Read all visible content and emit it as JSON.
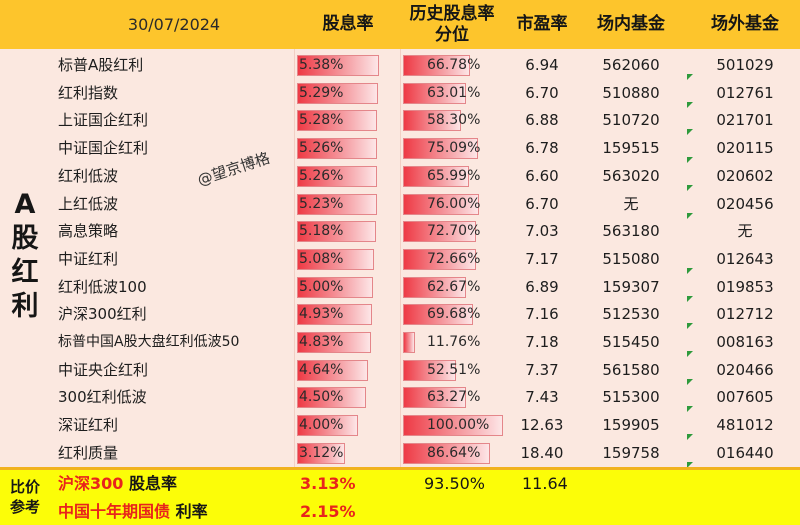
{
  "header": {
    "date": "30/07/2024",
    "col_dividend": "股息率",
    "col_percentile": "历史股息率分位",
    "col_pe": "市盈率",
    "col_etf": "场内基金",
    "col_otc": "场外基金"
  },
  "side_label": [
    "A",
    "股",
    "红",
    "利"
  ],
  "watermark": "@望京博格",
  "rows": [
    {
      "name": "标普A股红利",
      "dividend": "5.38%",
      "dividend_value": 5.38,
      "percentile": "66.78%",
      "percentile_value": 66.78,
      "pe": "6.94",
      "etf": "562060",
      "otc": "501029"
    },
    {
      "name": "红利指数",
      "dividend": "5.29%",
      "dividend_value": 5.29,
      "percentile": "63.01%",
      "percentile_value": 63.01,
      "pe": "6.70",
      "etf": "510880",
      "otc": "012761"
    },
    {
      "name": "上证国企红利",
      "dividend": "5.28%",
      "dividend_value": 5.28,
      "percentile": "58.30%",
      "percentile_value": 58.3,
      "pe": "6.88",
      "etf": "510720",
      "otc": "021701"
    },
    {
      "name": "中证国企红利",
      "dividend": "5.26%",
      "dividend_value": 5.26,
      "percentile": "75.09%",
      "percentile_value": 75.09,
      "pe": "6.78",
      "etf": "159515",
      "otc": "020115"
    },
    {
      "name": "红利低波",
      "dividend": "5.26%",
      "dividend_value": 5.26,
      "percentile": "65.99%",
      "percentile_value": 65.99,
      "pe": "6.60",
      "etf": "563020",
      "otc": "020602"
    },
    {
      "name": "上红低波",
      "dividend": "5.23%",
      "dividend_value": 5.23,
      "percentile": "76.00%",
      "percentile_value": 76.0,
      "pe": "6.70",
      "etf": "无",
      "otc": "020456"
    },
    {
      "name": "高息策略",
      "dividend": "5.18%",
      "dividend_value": 5.18,
      "percentile": "72.70%",
      "percentile_value": 72.7,
      "pe": "7.03",
      "etf": "563180",
      "otc": "无"
    },
    {
      "name": "中证红利",
      "dividend": "5.08%",
      "dividend_value": 5.08,
      "percentile": "72.66%",
      "percentile_value": 72.66,
      "pe": "7.17",
      "etf": "515080",
      "otc": "012643"
    },
    {
      "name": "红利低波100",
      "dividend": "5.00%",
      "dividend_value": 5.0,
      "percentile": "62.67%",
      "percentile_value": 62.67,
      "pe": "6.89",
      "etf": "159307",
      "otc": "019853"
    },
    {
      "name": "沪深300红利",
      "dividend": "4.93%",
      "dividend_value": 4.93,
      "percentile": "69.68%",
      "percentile_value": 69.68,
      "pe": "7.16",
      "etf": "512530",
      "otc": "012712"
    },
    {
      "name": "标普中国A股大盘红利低波50",
      "dividend": "4.83%",
      "dividend_value": 4.83,
      "percentile": "11.76%",
      "percentile_value": 11.76,
      "pe": "7.18",
      "etf": "515450",
      "otc": "008163"
    },
    {
      "name": "中证央企红利",
      "dividend": "4.64%",
      "dividend_value": 4.64,
      "percentile": "52.51%",
      "percentile_value": 52.51,
      "pe": "7.37",
      "etf": "561580",
      "otc": "020466"
    },
    {
      "name": "300红利低波",
      "dividend": "4.50%",
      "dividend_value": 4.5,
      "percentile": "63.27%",
      "percentile_value": 63.27,
      "pe": "7.43",
      "etf": "515300",
      "otc": "007605"
    },
    {
      "name": "深证红利",
      "dividend": "4.00%",
      "dividend_value": 4.0,
      "percentile": "100.00%",
      "percentile_value": 100.0,
      "pe": "12.63",
      "etf": "159905",
      "otc": "481012"
    },
    {
      "name": "红利质量",
      "dividend": "3.12%",
      "dividend_value": 3.12,
      "percentile": "86.64%",
      "percentile_value": 86.64,
      "pe": "18.40",
      "etf": "159758",
      "otc": "016440"
    }
  ],
  "footer": {
    "side_label": [
      "比价",
      "参考"
    ],
    "row1": {
      "name_red": "沪深300",
      "name_black": " 股息率",
      "dividend": "3.13%",
      "percentile": "93.50%",
      "pe": "11.64"
    },
    "row2": {
      "name_red": "中国十年期国债",
      "name_black": " 利率",
      "rate": "2.15%"
    }
  },
  "colors": {
    "header": "#fdc52c",
    "body": "#fbe8e0",
    "footer": "#fcfd08",
    "bar": "#ee3a45",
    "highlight_text": "#e8241c",
    "flag": "#2e9a3c"
  }
}
